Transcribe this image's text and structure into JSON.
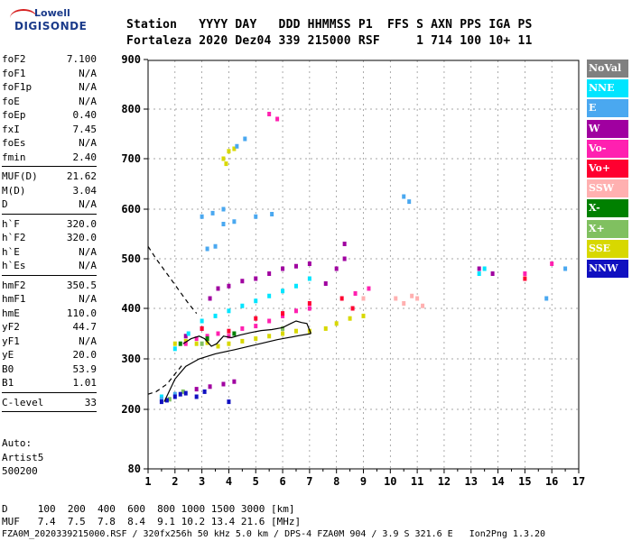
{
  "logo": {
    "line1": "Lowell",
    "line2": "DIGISONDE"
  },
  "header": {
    "line1": "Station   YYYY DAY   DDD HHMMSS P1  FFS S AXN PPS IGA PS",
    "line2": "Fortaleza 2020 Dez04 339 215000 RSF     1 714 100 10+ 11"
  },
  "params": [
    {
      "k": "foF2",
      "v": "7.100"
    },
    {
      "k": "foF1",
      "v": "N/A"
    },
    {
      "k": "foF1p",
      "v": "N/A"
    },
    {
      "k": "foE",
      "v": "N/A"
    },
    {
      "k": "foEp",
      "v": "0.40"
    },
    {
      "k": "fxI",
      "v": "7.45"
    },
    {
      "k": "foEs",
      "v": "N/A"
    },
    {
      "k": "fmin",
      "v": "2.40"
    },
    {
      "sep": true
    },
    {
      "k": "MUF(D)",
      "v": "21.62"
    },
    {
      "k": "M(D)",
      "v": "3.04"
    },
    {
      "k": "D",
      "v": "N/A"
    },
    {
      "sep": true
    },
    {
      "k": "h`F",
      "v": "320.0"
    },
    {
      "k": "h`F2",
      "v": "320.0"
    },
    {
      "k": "h`E",
      "v": "N/A"
    },
    {
      "k": "h`Es",
      "v": "N/A"
    },
    {
      "sep": true
    },
    {
      "k": "hmF2",
      "v": "350.5"
    },
    {
      "k": "hmF1",
      "v": "N/A"
    },
    {
      "k": "hmE",
      "v": "110.0"
    },
    {
      "k": "yF2",
      "v": "44.7"
    },
    {
      "k": "yF1",
      "v": "N/A"
    },
    {
      "k": "yE",
      "v": "20.0"
    },
    {
      "k": "B0",
      "v": "53.9"
    },
    {
      "k": "B1",
      "v": "1.01"
    },
    {
      "sep": true
    },
    {
      "k": "C-level",
      "v": "33"
    },
    {
      "sep": true
    }
  ],
  "autoscale": [
    "Auto:",
    "Artist5",
    "500200"
  ],
  "legend": [
    {
      "label": "NoVal",
      "color": "#808080"
    },
    {
      "label": "NNE",
      "color": "#00e5ff"
    },
    {
      "label": "E",
      "color": "#4aa8f0"
    },
    {
      "label": "W",
      "color": "#a000a0"
    },
    {
      "label": "Vo-",
      "color": "#ff20b0"
    },
    {
      "label": "Vo+",
      "color": "#ff0030"
    },
    {
      "label": "SSW",
      "color": "#ffb0b0"
    },
    {
      "label": "X-",
      "color": "#008000"
    },
    {
      "label": "X+",
      "color": "#80c060"
    },
    {
      "label": "SSE",
      "color": "#d8d800"
    },
    {
      "label": "NNW",
      "color": "#1010c0"
    }
  ],
  "bottom": {
    "d_line": "D     100  200  400  600  800 1000 1500 3000 [km]",
    "muf_line": "MUF   7.4  7.5  7.8  8.4  9.1 10.2 13.4 21.6 [MHz]",
    "file_line": "FZA0M_2020339215000.RSF / 320fx256h 50 kHz 5.0 km / DPS-4 FZA0M 904 / 3.9 S 321.6 E   Ion2Png 1.3.20"
  },
  "chart_data": {
    "type": "scatter",
    "title": "",
    "xlabel": "",
    "ylabel": "",
    "xlim": [
      1,
      17
    ],
    "ylim": [
      80,
      900
    ],
    "x_ticks": [
      "1",
      "2",
      "3",
      "4",
      "5",
      "6",
      "7",
      "8",
      "9",
      "10",
      "11",
      "12",
      "13",
      "14",
      "15",
      "16",
      "17"
    ],
    "y_ticks": [
      "80",
      "200",
      "300",
      "400",
      "500",
      "600",
      "700",
      "800",
      "900"
    ],
    "grid": true,
    "series": [
      {
        "color": "#d8d800",
        "points": [
          [
            2,
            330
          ],
          [
            2.4,
            335
          ],
          [
            2.8,
            330
          ],
          [
            3.2,
            332
          ],
          [
            3.6,
            325
          ],
          [
            4,
            330
          ],
          [
            4.5,
            335
          ],
          [
            5,
            340
          ],
          [
            5.5,
            345
          ],
          [
            6,
            350
          ],
          [
            6.5,
            355
          ],
          [
            7,
            355
          ],
          [
            3.8,
            700
          ],
          [
            4,
            715
          ],
          [
            3.9,
            690
          ],
          [
            4.2,
            720
          ],
          [
            7.6,
            360
          ],
          [
            8,
            370
          ],
          [
            8.5,
            380
          ],
          [
            9,
            385
          ]
        ]
      },
      {
        "color": "#a000a0",
        "points": [
          [
            2.4,
            345
          ],
          [
            3,
            360
          ],
          [
            3.3,
            420
          ],
          [
            3.6,
            440
          ],
          [
            4,
            445
          ],
          [
            4.5,
            455
          ],
          [
            5,
            460
          ],
          [
            5.5,
            470
          ],
          [
            6,
            480
          ],
          [
            6.5,
            485
          ],
          [
            7,
            490
          ],
          [
            7.6,
            450
          ],
          [
            8,
            480
          ],
          [
            8.3,
            500
          ],
          [
            8.3,
            530
          ],
          [
            2.8,
            240
          ],
          [
            3.3,
            245
          ],
          [
            3.8,
            250
          ],
          [
            4.2,
            255
          ],
          [
            13.3,
            480
          ],
          [
            13.8,
            470
          ]
        ]
      },
      {
        "color": "#00e5ff",
        "points": [
          [
            2,
            320
          ],
          [
            2.5,
            350
          ],
          [
            3,
            375
          ],
          [
            3.5,
            385
          ],
          [
            4,
            395
          ],
          [
            4.5,
            405
          ],
          [
            5,
            415
          ],
          [
            5.5,
            425
          ],
          [
            6,
            435
          ],
          [
            6.5,
            445
          ],
          [
            7,
            460
          ],
          [
            1.5,
            225
          ],
          [
            13.3,
            470
          ],
          [
            13.5,
            480
          ]
        ]
      },
      {
        "color": "#4aa8f0",
        "points": [
          [
            3,
            585
          ],
          [
            3.4,
            592
          ],
          [
            3.8,
            600
          ],
          [
            3.8,
            570
          ],
          [
            4.2,
            575
          ],
          [
            5,
            585
          ],
          [
            5.6,
            590
          ],
          [
            3.2,
            520
          ],
          [
            3.5,
            525
          ],
          [
            4.3,
            725
          ],
          [
            4.6,
            740
          ],
          [
            10.5,
            625
          ],
          [
            10.7,
            615
          ],
          [
            16.5,
            480
          ],
          [
            15.8,
            420
          ],
          [
            2,
            230
          ],
          [
            1.5,
            220
          ]
        ]
      },
      {
        "color": "#ff20b0",
        "points": [
          [
            2.4,
            330
          ],
          [
            2.8,
            340
          ],
          [
            3.2,
            345
          ],
          [
            3.6,
            350
          ],
          [
            4,
            345
          ],
          [
            4.5,
            360
          ],
          [
            5,
            365
          ],
          [
            5.5,
            375
          ],
          [
            6,
            385
          ],
          [
            6.5,
            395
          ],
          [
            7,
            400
          ],
          [
            5.5,
            790
          ],
          [
            5.8,
            780
          ],
          [
            8.7,
            430
          ],
          [
            9.2,
            440
          ],
          [
            15,
            470
          ],
          [
            16,
            490
          ]
        ]
      },
      {
        "color": "#ff0030",
        "points": [
          [
            3,
            360
          ],
          [
            4,
            355
          ],
          [
            5,
            380
          ],
          [
            6,
            390
          ],
          [
            7,
            410
          ],
          [
            8.2,
            420
          ],
          [
            8.6,
            400
          ],
          [
            15,
            460
          ]
        ]
      },
      {
        "color": "#ffb0b0",
        "points": [
          [
            10.2,
            420
          ],
          [
            10.5,
            410
          ],
          [
            10.8,
            425
          ],
          [
            11,
            420
          ],
          [
            11.2,
            405
          ],
          [
            9,
            420
          ]
        ]
      },
      {
        "color": "#008000",
        "points": [
          [
            2.2,
            330
          ],
          [
            3.2,
            340
          ],
          [
            4.2,
            350
          ]
        ]
      },
      {
        "color": "#80c060",
        "points": [
          [
            1.8,
            220
          ],
          [
            2.3,
            235
          ],
          [
            3,
            330
          ],
          [
            6,
            360
          ]
        ]
      },
      {
        "color": "#1010c0",
        "points": [
          [
            1.5,
            215
          ],
          [
            1.7,
            218
          ],
          [
            2,
            225
          ],
          [
            2.2,
            230
          ],
          [
            2.4,
            232
          ],
          [
            2.8,
            225
          ],
          [
            3.1,
            235
          ],
          [
            4,
            215
          ]
        ]
      }
    ],
    "curves": [
      {
        "style": "solid",
        "points": [
          [
            2.3,
            330
          ],
          [
            2.6,
            340
          ],
          [
            2.9,
            345
          ],
          [
            3.1,
            340
          ],
          [
            3.35,
            325
          ],
          [
            3.55,
            330
          ],
          [
            3.8,
            345
          ],
          [
            4.1,
            342
          ],
          [
            4.4,
            347
          ],
          [
            4.8,
            352
          ],
          [
            5.2,
            356
          ],
          [
            5.6,
            358
          ],
          [
            6,
            362
          ],
          [
            6.3,
            370
          ],
          [
            6.5,
            375
          ],
          [
            6.7,
            372
          ],
          [
            6.9,
            370
          ],
          [
            7.05,
            350
          ]
        ]
      },
      {
        "style": "solid",
        "points": [
          [
            1.6,
            215
          ],
          [
            2,
            260
          ],
          [
            2.4,
            285
          ],
          [
            2.9,
            300
          ],
          [
            3.5,
            310
          ],
          [
            4.2,
            318
          ],
          [
            5,
            328
          ],
          [
            5.8,
            338
          ],
          [
            6.5,
            345
          ],
          [
            7.05,
            350
          ]
        ]
      },
      {
        "style": "dashed",
        "points": [
          [
            1,
            525
          ],
          [
            1.3,
            500
          ],
          [
            1.7,
            470
          ],
          [
            2.1,
            440
          ],
          [
            2.5,
            410
          ],
          [
            2.8,
            390
          ]
        ]
      },
      {
        "style": "dashed",
        "points": [
          [
            1,
            230
          ],
          [
            1.3,
            235
          ],
          [
            1.7,
            250
          ],
          [
            2,
            270
          ],
          [
            2.3,
            290
          ]
        ]
      }
    ]
  }
}
